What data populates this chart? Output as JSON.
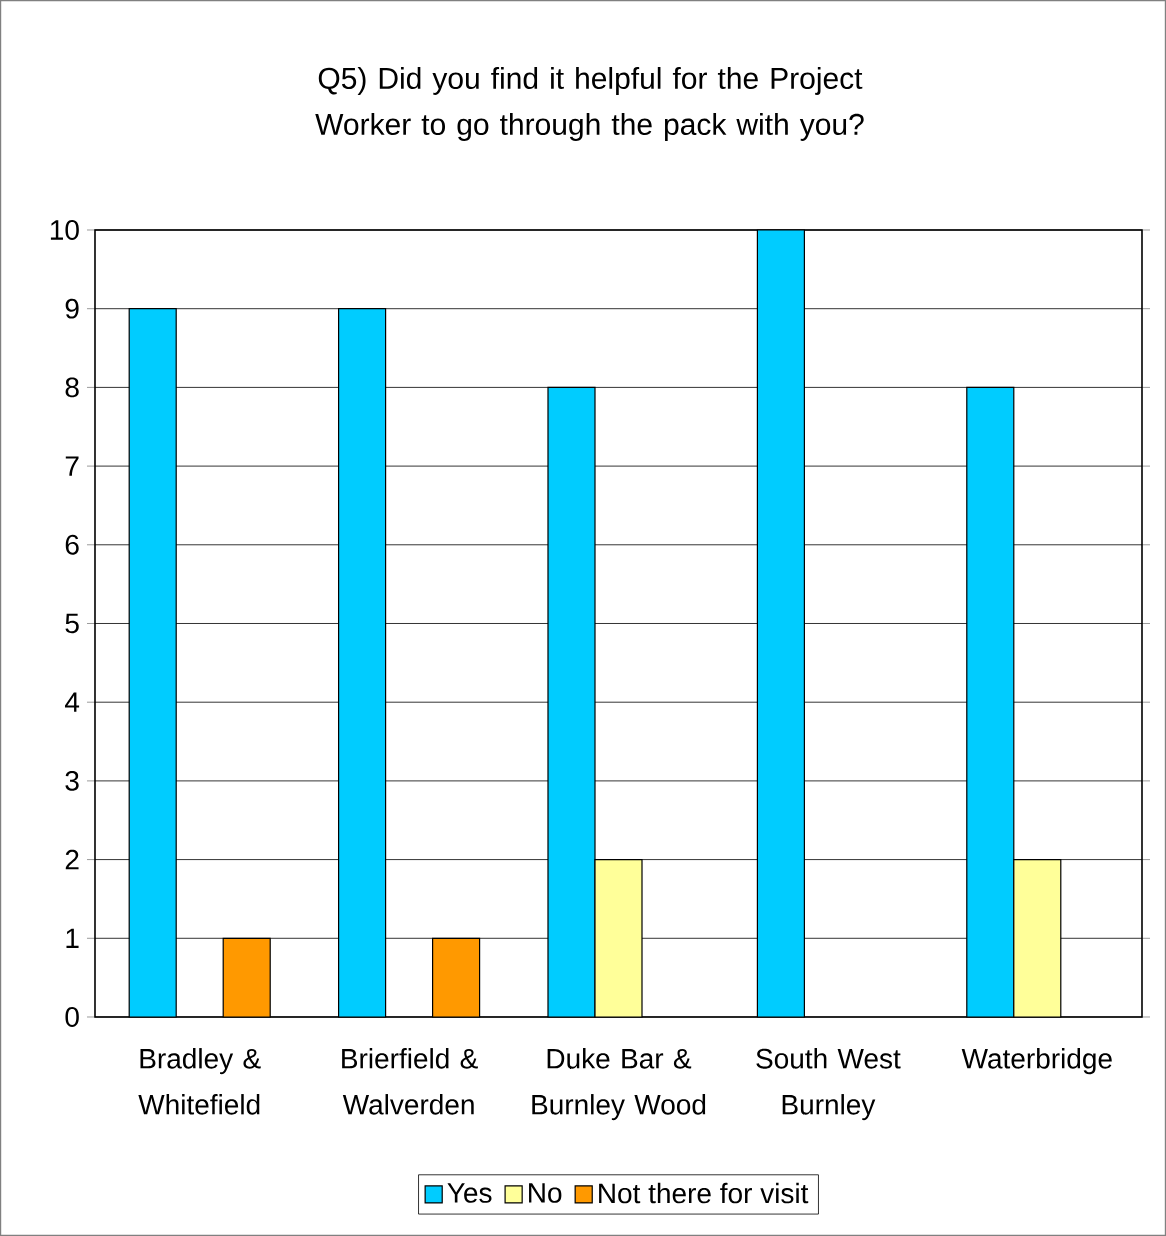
{
  "chart_data": {
    "type": "bar",
    "title": "Q5) Did you find it helpful for the Project Worker to go through the pack with you?",
    "categories": [
      "Bradley & Whitefield",
      "Brierfield & Walverden",
      "Duke Bar & Burnley Wood",
      "South West Burnley",
      "Waterbridge"
    ],
    "series": [
      {
        "name": "Yes",
        "color": "#00ccff",
        "values": [
          9,
          9,
          8,
          10,
          8
        ]
      },
      {
        "name": "No",
        "color": "#ffff99",
        "values": [
          null,
          null,
          2,
          null,
          2
        ]
      },
      {
        "name": "Not there for visit",
        "color": "#ff9900",
        "values": [
          1,
          1,
          null,
          null,
          null
        ]
      }
    ],
    "ylim": [
      0,
      10
    ],
    "yticks": [
      0,
      1,
      2,
      3,
      4,
      5,
      6,
      7,
      8,
      9,
      10
    ],
    "grid": "y",
    "legend": "bottom"
  }
}
